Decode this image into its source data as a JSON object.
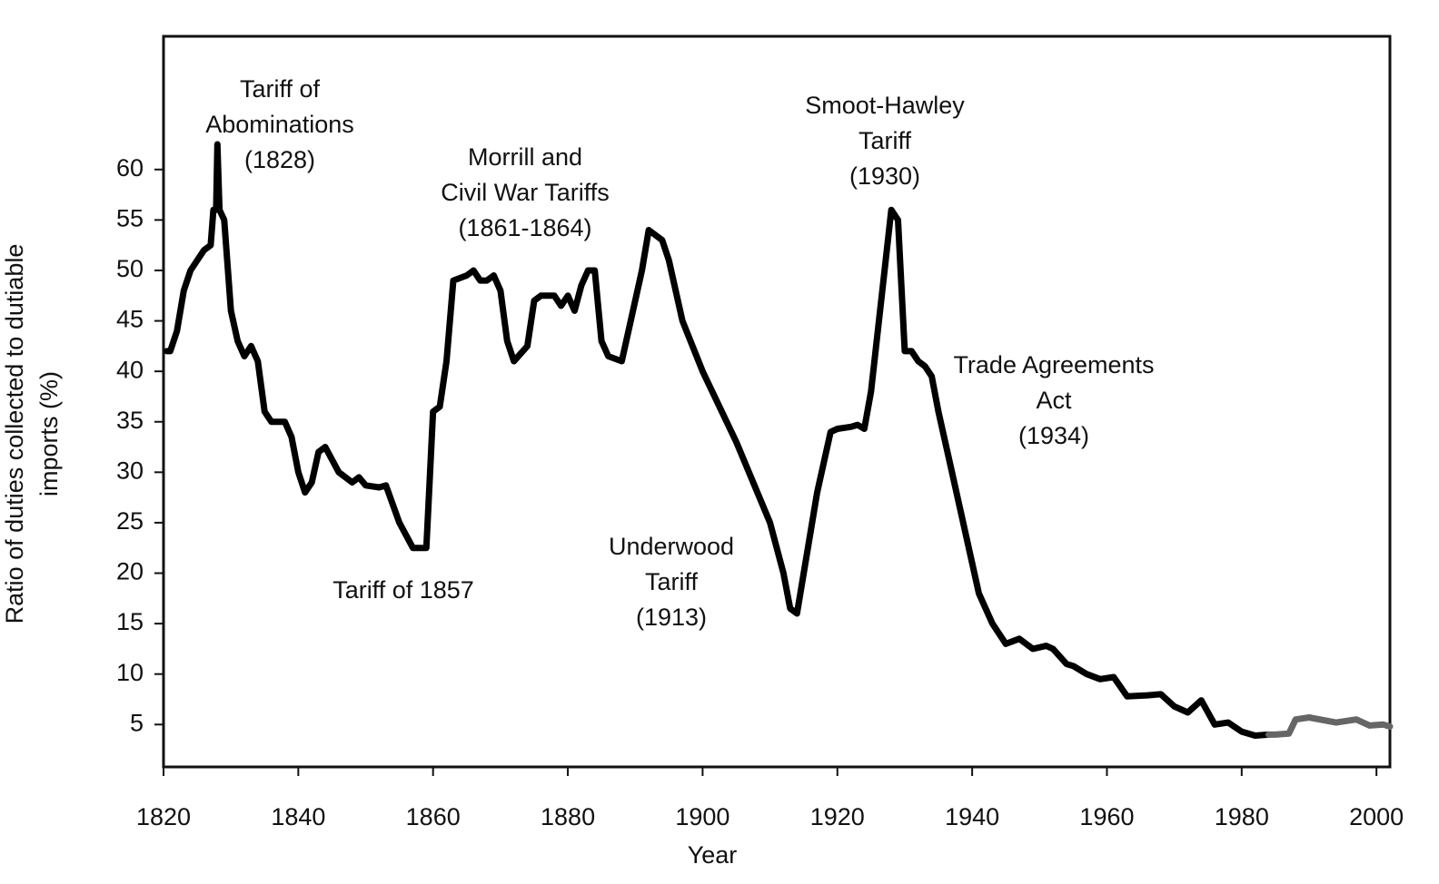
{
  "chart_data": {
    "type": "line",
    "xlabel": "Year",
    "ylabel": [
      "Ratio of duties collected to dutiable",
      "imports (%)"
    ],
    "xlim": [
      1820,
      2002
    ],
    "xticks": [
      1820,
      1840,
      1860,
      1880,
      1900,
      1920,
      1940,
      1960,
      1980,
      2000
    ],
    "ylim": [
      0.8,
      73.2
    ],
    "yticks": [
      5,
      10,
      15,
      20,
      25,
      30,
      35,
      40,
      45,
      50,
      55,
      60
    ],
    "grid": false,
    "series": [
      {
        "color": "#000000",
        "x": [
          1820.5,
          1821,
          1822,
          1823,
          1824,
          1825,
          1826,
          1827,
          1827.4,
          1827.8,
          1828,
          1828.3,
          1829,
          1830,
          1831,
          1832,
          1833,
          1834,
          1835,
          1836,
          1838,
          1839,
          1840,
          1841,
          1842,
          1843,
          1844,
          1846,
          1848,
          1849,
          1850,
          1852,
          1853,
          1855,
          1857,
          1859,
          1860,
          1861,
          1862,
          1863,
          1865,
          1866,
          1867,
          1868,
          1869,
          1870,
          1871,
          1872,
          1874,
          1875,
          1876,
          1878,
          1879,
          1880,
          1881,
          1882,
          1883,
          1884,
          1885,
          1886,
          1888,
          1889,
          1891,
          1892,
          1894,
          1895,
          1897,
          1900,
          1905,
          1910,
          1912,
          1913,
          1914,
          1915,
          1917,
          1919,
          1920,
          1922,
          1923,
          1924,
          1925,
          1927,
          1928,
          1929,
          1930,
          1931,
          1932,
          1933,
          1934,
          1935,
          1937,
          1939,
          1941,
          1943,
          1945,
          1947,
          1949,
          1951,
          1952,
          1954,
          1955,
          1957,
          1959,
          1961,
          1963,
          1966,
          1968,
          1970,
          1972,
          1974,
          1976,
          1978,
          1980,
          1982,
          1984
        ],
        "values": [
          42,
          42,
          44,
          48,
          50,
          51,
          52,
          52.5,
          56,
          56,
          62.5,
          56,
          55,
          46,
          43,
          41.5,
          42.5,
          41,
          36,
          35,
          35,
          33.5,
          30,
          28,
          29,
          32,
          32.5,
          30,
          29,
          29.5,
          28.7,
          28.5,
          28.7,
          25,
          22.5,
          22.5,
          36,
          36.5,
          41,
          49,
          49.5,
          50,
          49,
          49,
          49.5,
          48,
          43,
          41,
          42.5,
          47,
          47.5,
          47.5,
          46.5,
          47.5,
          46,
          48.5,
          50,
          50,
          43,
          41.5,
          41,
          44,
          50,
          54,
          53,
          51,
          45,
          40,
          33,
          25,
          20,
          16.5,
          16,
          20,
          28,
          34,
          34.3,
          34.5,
          34.7,
          34.3,
          38,
          50,
          56,
          55,
          42,
          42,
          41,
          40.5,
          39.5,
          36,
          30,
          24,
          18,
          15,
          13,
          13.5,
          12.5,
          12.8,
          12.5,
          11,
          10.8,
          10,
          9.5,
          9.7,
          7.8,
          7.9,
          8,
          6.8,
          6.2,
          7.4,
          5,
          5.2,
          4.3,
          3.9,
          4
        ]
      },
      {
        "color": "#666666",
        "x": [
          1984,
          1985,
          1987,
          1988,
          1990,
          1994,
          1997,
          1999,
          2001,
          2002
        ],
        "values": [
          4,
          4,
          4.1,
          5.5,
          5.7,
          5.2,
          5.5,
          4.9,
          5.0,
          4.8
        ]
      }
    ],
    "annotations": [
      [
        "Tariff of",
        "Abominations",
        "(1828)"
      ],
      [
        "Morrill and",
        "Civil War Tariffs",
        "(1861-1864)"
      ],
      [
        "Tariff of 1857"
      ],
      [
        "Underwood",
        "Tariff",
        "(1913)"
      ],
      [
        "Smoot-Hawley",
        "Tariff",
        "(1930)"
      ],
      [
        "Trade Agreements",
        "Act",
        "(1934)"
      ]
    ]
  }
}
